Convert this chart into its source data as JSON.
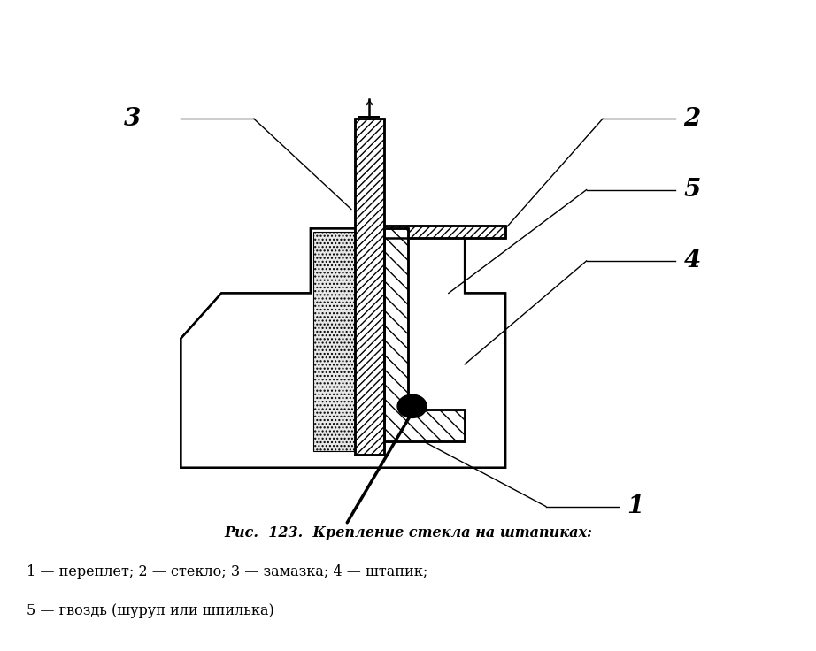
{
  "title_line1": "Рис.  123.  Крепление стекла на штапиках:",
  "caption_line2": "1 — переплет; 2 — стекло; 3 — замазка; 4 — штапик;",
  "caption_line3": "5 — гвоздь (шуруп или шпилька)",
  "lw_main": 1.8,
  "lw_thin": 1.0,
  "lw_leader": 1.0
}
